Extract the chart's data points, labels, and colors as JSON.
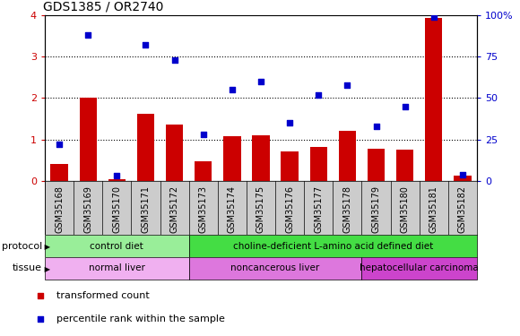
{
  "title": "GDS1385 / OR2740",
  "samples": [
    "GSM35168",
    "GSM35169",
    "GSM35170",
    "GSM35171",
    "GSM35172",
    "GSM35173",
    "GSM35174",
    "GSM35175",
    "GSM35176",
    "GSM35177",
    "GSM35178",
    "GSM35179",
    "GSM35180",
    "GSM35181",
    "GSM35182"
  ],
  "bar_values": [
    0.42,
    2.02,
    0.05,
    1.62,
    1.36,
    0.48,
    1.08,
    1.1,
    0.72,
    0.82,
    1.22,
    0.78,
    0.76,
    3.93,
    0.12
  ],
  "scatter_values": [
    22,
    88,
    3,
    82,
    73,
    28,
    55,
    60,
    35,
    52,
    58,
    33,
    45,
    99,
    4
  ],
  "bar_color": "#cc0000",
  "scatter_color": "#0000cc",
  "ylim_left": [
    0,
    4
  ],
  "ylim_right": [
    0,
    100
  ],
  "yticks_left": [
    0,
    1,
    2,
    3,
    4
  ],
  "yticks_right": [
    0,
    25,
    50,
    75,
    100
  ],
  "yticklabels_right": [
    "0",
    "25",
    "50",
    "75",
    "100%"
  ],
  "protocol_groups": [
    {
      "label": "control diet",
      "start": 0,
      "end": 5,
      "color": "#99ee99"
    },
    {
      "label": "choline-deficient L-amino acid defined diet",
      "start": 5,
      "end": 15,
      "color": "#44dd44"
    }
  ],
  "tissue_groups": [
    {
      "label": "normal liver",
      "start": 0,
      "end": 5,
      "color": "#f0b0f0"
    },
    {
      "label": "noncancerous liver",
      "start": 5,
      "end": 11,
      "color": "#dd77dd"
    },
    {
      "label": "hepatocellular carcinoma",
      "start": 11,
      "end": 15,
      "color": "#cc44cc"
    }
  ],
  "legend_items": [
    {
      "label": "transformed count",
      "color": "#cc0000"
    },
    {
      "label": "percentile rank within the sample",
      "color": "#0000cc"
    }
  ],
  "bg_color": "#ffffff",
  "tick_area_color": "#cccccc"
}
